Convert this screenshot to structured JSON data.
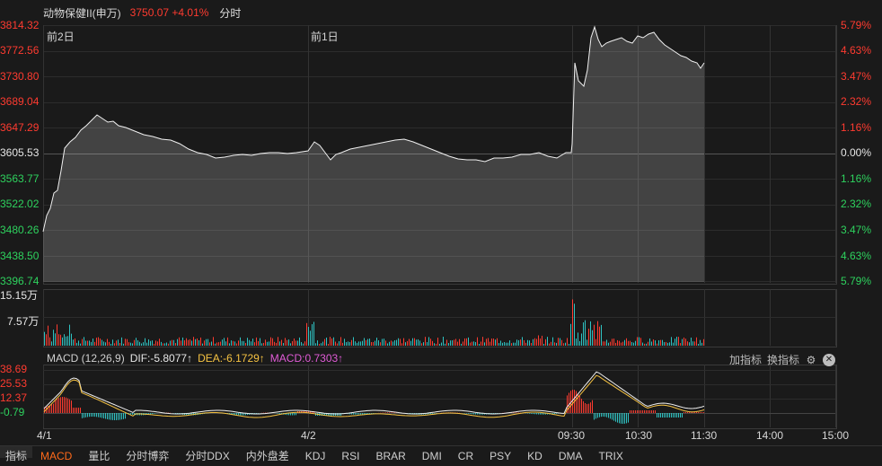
{
  "header": {
    "name": "动物保健II(申万)",
    "price_change": "3750.07 +4.01%",
    "mode": "分时"
  },
  "price_axis_left": [
    "3814.32",
    "3772.56",
    "3730.80",
    "3689.04",
    "3647.29",
    "3605.53",
    "3563.77",
    "3522.02",
    "3480.26",
    "3438.50",
    "3396.74"
  ],
  "price_axis_right": [
    "5.79%",
    "4.63%",
    "3.47%",
    "2.32%",
    "1.16%",
    "0.00%",
    "1.16%",
    "2.32%",
    "3.47%",
    "4.63%",
    "5.79%"
  ],
  "day_labels": [
    "前2日",
    "前1日"
  ],
  "volume_axis": [
    "15.15万",
    "7.57万"
  ],
  "macd": {
    "name": "MACD (12,26,9)",
    "dif": "DIF:-5.8077↑",
    "dea": "DEA:-6.1729↑",
    "macd": "MACD:0.7303↑",
    "axis": [
      "38.69",
      "25.53",
      "12.37",
      "-0.79"
    ]
  },
  "tools": {
    "add": "加指标",
    "switch": "换指标"
  },
  "time_axis": [
    "4/1",
    "4/2",
    "09:30",
    "10:30",
    "11:30",
    "14:00",
    "15:00"
  ],
  "tabs": [
    "指标",
    "MACD",
    "量比",
    "分时博弈",
    "分时DDX",
    "内外盘差",
    "KDJ",
    "RSI",
    "BRAR",
    "DMI",
    "CR",
    "PSY",
    "KD",
    "DMA",
    "TRIX"
  ],
  "colors": {
    "up": "#ff3b30",
    "down": "#2ed25e",
    "volume_down": "#2fc3c3",
    "dea": "#f5c242",
    "macd": "#e05bd6",
    "active_tab": "#ff6a1a"
  },
  "icons": {
    "settings": "gear-icon",
    "close": "close-icon"
  }
}
